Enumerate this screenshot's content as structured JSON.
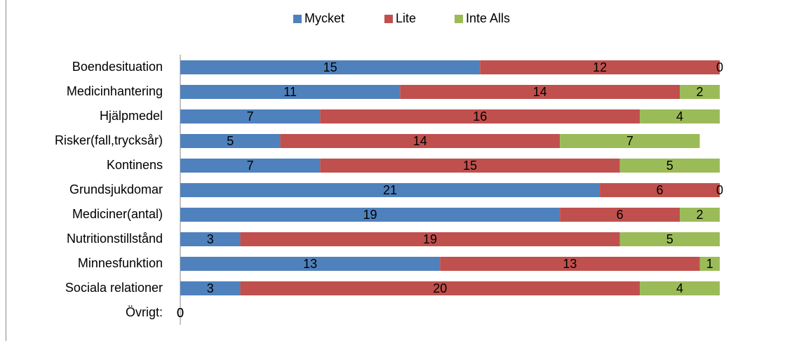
{
  "chart_data": {
    "type": "stacked-bar-horizontal",
    "categories": [
      "Boendesituation",
      "Medicinhantering",
      "Hjälpmedel",
      "Risker(fall,trycksår)",
      "Kontinens",
      "Grundsjukdomar",
      "Mediciner(antal)",
      "Nutritionstillstånd",
      "Minnesfunktion",
      "Sociala relationer",
      "Övrigt:"
    ],
    "series": [
      {
        "name": "Mycket",
        "color": "#4f81bd",
        "values": [
          15,
          11,
          7,
          5,
          7,
          21,
          19,
          3,
          13,
          3,
          0
        ]
      },
      {
        "name": "Lite",
        "color": "#c0504d",
        "values": [
          12,
          14,
          16,
          14,
          15,
          6,
          6,
          19,
          13,
          20,
          0
        ]
      },
      {
        "name": "Inte Alls",
        "color": "#9bbb59",
        "values": [
          0,
          2,
          4,
          7,
          5,
          0,
          2,
          5,
          1,
          4,
          0
        ]
      }
    ],
    "xlim": [
      0,
      27
    ],
    "legend": "top"
  }
}
